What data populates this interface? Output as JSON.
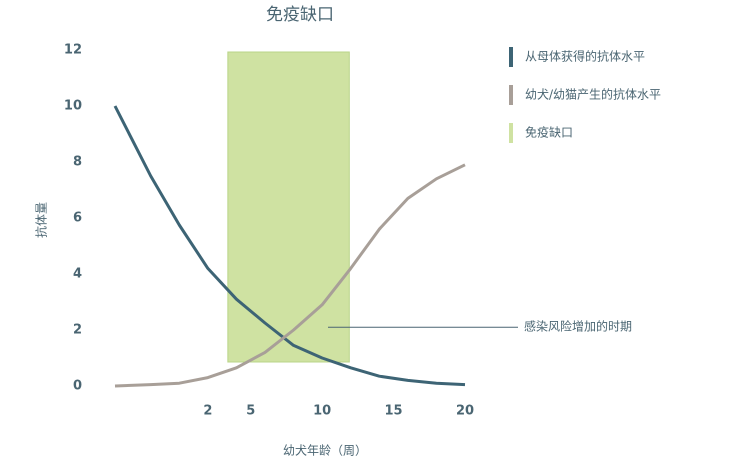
{
  "chart_data": {
    "type": "line",
    "title": "免疫缺口",
    "x_label": "幼犬年龄（周）",
    "y_label": "抗体量",
    "x": [
      -4.5,
      -2,
      0,
      2,
      4,
      6,
      8,
      10,
      12,
      14,
      16,
      18,
      20
    ],
    "series": [
      {
        "name": "从母体获得的抗体水平",
        "color": "#3d6475",
        "values": [
          10,
          7.5,
          5.75,
          4.2,
          3.1,
          2.25,
          1.45,
          1.0,
          0.65,
          0.35,
          0.2,
          0.1,
          0.05
        ]
      },
      {
        "name": "幼犬/幼猫产生的抗体水平",
        "color": "#a89f98",
        "values": [
          0,
          0.05,
          0.1,
          0.3,
          0.65,
          1.2,
          2.0,
          2.9,
          4.2,
          5.6,
          6.7,
          7.4,
          7.9
        ]
      }
    ],
    "window": {
      "name": "免疫缺口",
      "color": "#cfe2a2",
      "x": [
        3.4,
        11.9
      ]
    },
    "annotation": {
      "text": "感染风险增加的时期",
      "y": 2.1
    },
    "xlim": [
      -4.5,
      20
    ],
    "xticks": [
      2,
      5,
      10,
      15,
      20
    ],
    "ylim": [
      0,
      12
    ],
    "yticks": [
      0,
      2,
      4,
      6,
      8,
      10,
      12
    ],
    "grid": false
  }
}
